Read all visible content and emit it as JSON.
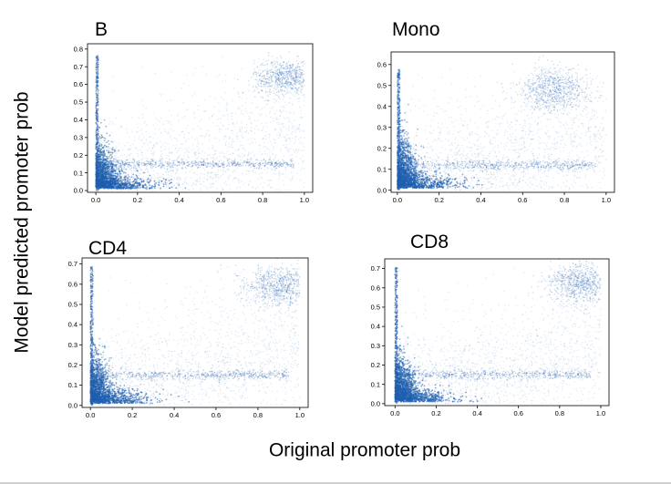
{
  "figure": {
    "shared_ylabel": "Model predicted promoter prob",
    "shared_xlabel": "Original promoter prob",
    "point_color": "#1f5fb0",
    "axis_color": "#000000"
  },
  "chart_data": [
    {
      "type": "scatter",
      "title": "B",
      "xlabel": "Original promoter prob",
      "ylabel": "Model predicted promoter prob",
      "xlim": [
        -0.04,
        1.04
      ],
      "ylim": [
        -0.01,
        0.83
      ],
      "xticks": [
        "0.0",
        "0.2",
        "0.4",
        "0.6",
        "0.8",
        "1.0"
      ],
      "yticks": [
        "0.0",
        "0.1",
        "0.2",
        "0.3",
        "0.4",
        "0.5",
        "0.6",
        "0.7",
        "0.8"
      ],
      "ytick_values": [
        0,
        0.1,
        0.2,
        0.3,
        0.4,
        0.5,
        0.6,
        0.7,
        0.8
      ],
      "ymax_point": 0.77,
      "band_y": 0.15,
      "cluster": {
        "x": 0.92,
        "y": 0.64
      }
    },
    {
      "type": "scatter",
      "title": "Mono",
      "xlabel": "Original promoter prob",
      "ylabel": "Model predicted promoter prob",
      "xlim": [
        -0.03,
        1.04
      ],
      "ylim": [
        -0.01,
        0.66
      ],
      "xticks": [
        "0.0",
        "0.2",
        "0.4",
        "0.6",
        "0.8",
        "1.0"
      ],
      "yticks": [
        "0.0",
        "0.1",
        "0.2",
        "0.3",
        "0.4",
        "0.5",
        "0.6"
      ],
      "ytick_values": [
        0,
        0.1,
        0.2,
        0.3,
        0.4,
        0.5,
        0.6
      ],
      "ymax_point": 0.58,
      "band_y": 0.12,
      "cluster": {
        "x": 0.75,
        "y": 0.48
      }
    },
    {
      "type": "scatter",
      "title": "CD4",
      "xlabel": "Original promoter prob",
      "ylabel": "Model predicted promoter prob",
      "xlim": [
        -0.04,
        1.04
      ],
      "ylim": [
        -0.01,
        0.73
      ],
      "xticks": [
        "0.0",
        "0.2",
        "0.4",
        "0.6",
        "0.8",
        "1.0"
      ],
      "yticks": [
        "0.0",
        "0.1",
        "0.2",
        "0.3",
        "0.4",
        "0.5",
        "0.6",
        "0.7"
      ],
      "ytick_values": [
        0,
        0.1,
        0.2,
        0.3,
        0.4,
        0.5,
        0.6,
        0.7
      ],
      "ymax_point": 0.69,
      "band_y": 0.15,
      "cluster": {
        "x": 0.9,
        "y": 0.59
      }
    },
    {
      "type": "scatter",
      "title": "CD8",
      "xlabel": "Original promoter prob",
      "ylabel": "Model predicted promoter prob",
      "xlim": [
        -0.05,
        1.04
      ],
      "ylim": [
        -0.01,
        0.75
      ],
      "xticks": [
        "0.0",
        "0.2",
        "0.4",
        "0.6",
        "0.8",
        "1.0"
      ],
      "yticks": [
        "0.0",
        "0.1",
        "0.2",
        "0.3",
        "0.4",
        "0.5",
        "0.6",
        "0.7"
      ],
      "ytick_values": [
        0,
        0.1,
        0.2,
        0.3,
        0.4,
        0.5,
        0.6,
        0.7
      ],
      "ymax_point": 0.71,
      "band_y": 0.15,
      "cluster": {
        "x": 0.9,
        "y": 0.62
      }
    }
  ]
}
